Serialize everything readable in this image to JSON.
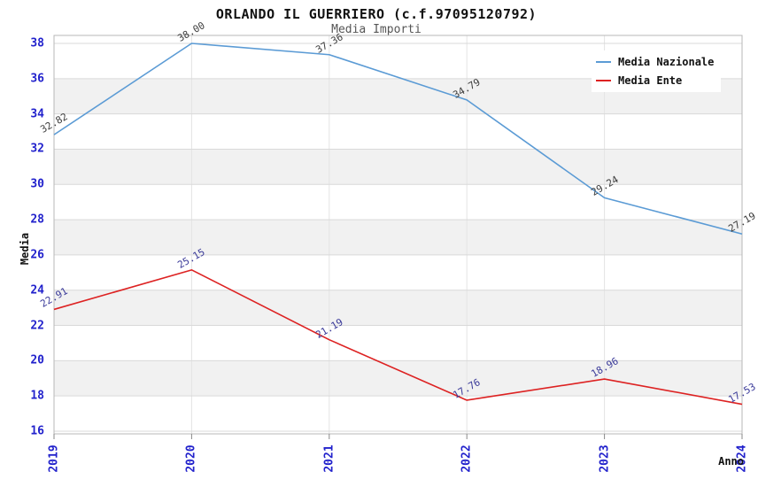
{
  "title": "ORLANDO IL GUERRIERO (c.f.97095120792)",
  "subtitle": "Media Importi",
  "colors": {
    "serie_nazionale": "#5b9bd5",
    "serie_ente": "#dd2222",
    "axis_tick_text": "#2222cc",
    "label_nazionale": "#3c3c3c",
    "label_ente": "#3a3a99",
    "band_gray": "#f1f1f1",
    "grid_h": "#d9d9d9",
    "grid_v": "#e4e4e4",
    "plot_border": "#b7b7b7",
    "tick_mark": "#888888"
  },
  "legend": {
    "items": [
      {
        "label": "Media Nazionale"
      },
      {
        "label": "Media Ente"
      }
    ]
  },
  "chart_data": {
    "type": "line",
    "x": [
      "2019",
      "2020",
      "2021",
      "2022",
      "2023",
      "2024"
    ],
    "series": [
      {
        "name": "Media Nazionale",
        "color": "#5b9bd5",
        "label_color": "#3c3c3c",
        "values": [
          32.82,
          38.0,
          37.36,
          34.79,
          29.24,
          27.19
        ]
      },
      {
        "name": "Media Ente",
        "color": "#dd2222",
        "label_color": "#3a3a99",
        "values": [
          22.91,
          25.15,
          21.19,
          17.76,
          18.96,
          17.53
        ]
      }
    ],
    "title": "ORLANDO IL GUERRIERO (c.f.97095120792)",
    "subtitle": "Media Importi",
    "xlabel": "Anno",
    "ylabel": "Media",
    "ylim": [
      16,
      38
    ],
    "ytick_step": 2,
    "grid": "on",
    "band_pattern": "alternating gray bands every 2 units (36-34, 32-30, 28-26, 24-22, 20-18)",
    "legend_position": "top-right",
    "data_labels": "on, rotated -30deg, 2 decimals"
  }
}
